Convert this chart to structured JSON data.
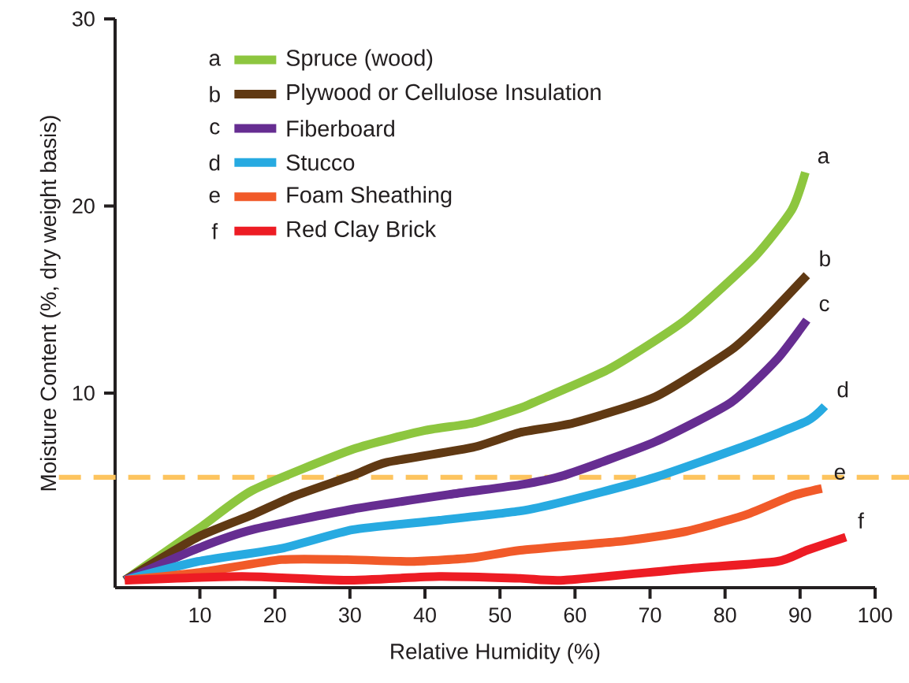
{
  "chart_data": {
    "type": "line",
    "xlabel": "Relative Humidity (%)",
    "ylabel": "Moisture Content (%, dry weight basis)",
    "xlim": [
      -1.3,
      100
    ],
    "ylim": [
      -0.4,
      30
    ],
    "xticks": [
      10,
      20,
      30,
      40,
      50,
      60,
      70,
      80,
      90,
      100
    ],
    "yticks": [
      10,
      20,
      30
    ],
    "legend": "top left",
    "series": [
      {
        "name": "Spruce (wood)",
        "color": "#8dc63f",
        "x": [
          0,
          10,
          17,
          30.4,
          40,
          46.4,
          52.7,
          54.5,
          64.6,
          74.7,
          84,
          88.9,
          90.7
        ],
        "values": [
          0,
          2.8,
          4.8,
          7.0,
          8.0,
          8.4,
          9.2,
          9.5,
          11.3,
          13.9,
          17.3,
          19.8,
          21.8
        ]
      },
      {
        "name": "Plywood or Cellulose Insulation",
        "color": "#603913",
        "x": [
          0,
          9.7,
          17,
          22.6,
          30.4,
          34.9,
          46.4,
          52.7,
          59.8,
          70.7,
          80.8,
          85.2,
          90.9
        ],
        "values": [
          0,
          2.3,
          3.5,
          4.5,
          5.6,
          6.3,
          7.1,
          7.9,
          8.4,
          9.8,
          12.3,
          13.9,
          16.3
        ]
      },
      {
        "name": "Fiberboard",
        "color": "#662d91",
        "x": [
          0,
          9.7,
          17,
          30.4,
          43.6,
          52.7,
          58.5,
          70.7,
          80.8,
          86.9,
          90.9
        ],
        "values": [
          0,
          1.7,
          2.7,
          3.8,
          4.6,
          5.1,
          5.6,
          7.4,
          9.5,
          11.8,
          13.9
        ]
      },
      {
        "name": "Stucco",
        "color": "#27aae1",
        "x": [
          0,
          9.7,
          20.9,
          30.4,
          41.9,
          52.7,
          58.5,
          70.7,
          82.8,
          90.9,
          93.3
        ],
        "values": [
          0,
          1.0,
          1.7,
          2.7,
          3.2,
          3.7,
          4.2,
          5.5,
          7.2,
          8.5,
          9.3
        ]
      },
      {
        "name": "Foam Sheathing",
        "color": "#f15a29",
        "x": [
          0,
          9.7,
          20.9,
          29.6,
          38.3,
          46.4,
          52.7,
          66.6,
          74.7,
          82.8,
          88.9,
          92.9
        ],
        "values": [
          0,
          0.4,
          1.1,
          1.1,
          1.0,
          1.2,
          1.6,
          2.1,
          2.6,
          3.5,
          4.5,
          4.9
        ]
      },
      {
        "name": "Red Clay Brick",
        "color": "#ed1c24",
        "x": [
          0,
          15.6,
          29.6,
          41.9,
          52.7,
          58.5,
          74.7,
          86.9,
          90.9,
          96.1
        ],
        "values": [
          0,
          0.2,
          0.0,
          0.2,
          0.1,
          0.0,
          0.6,
          1.0,
          1.6,
          2.3
        ]
      }
    ],
    "ref_lines": [
      {
        "axis": "y",
        "value": 5.5,
        "color": "#fdc45f",
        "line_style": "dashed"
      }
    ],
    "annotations": [
      "a",
      "b",
      "c",
      "d",
      "e",
      "f"
    ]
  }
}
